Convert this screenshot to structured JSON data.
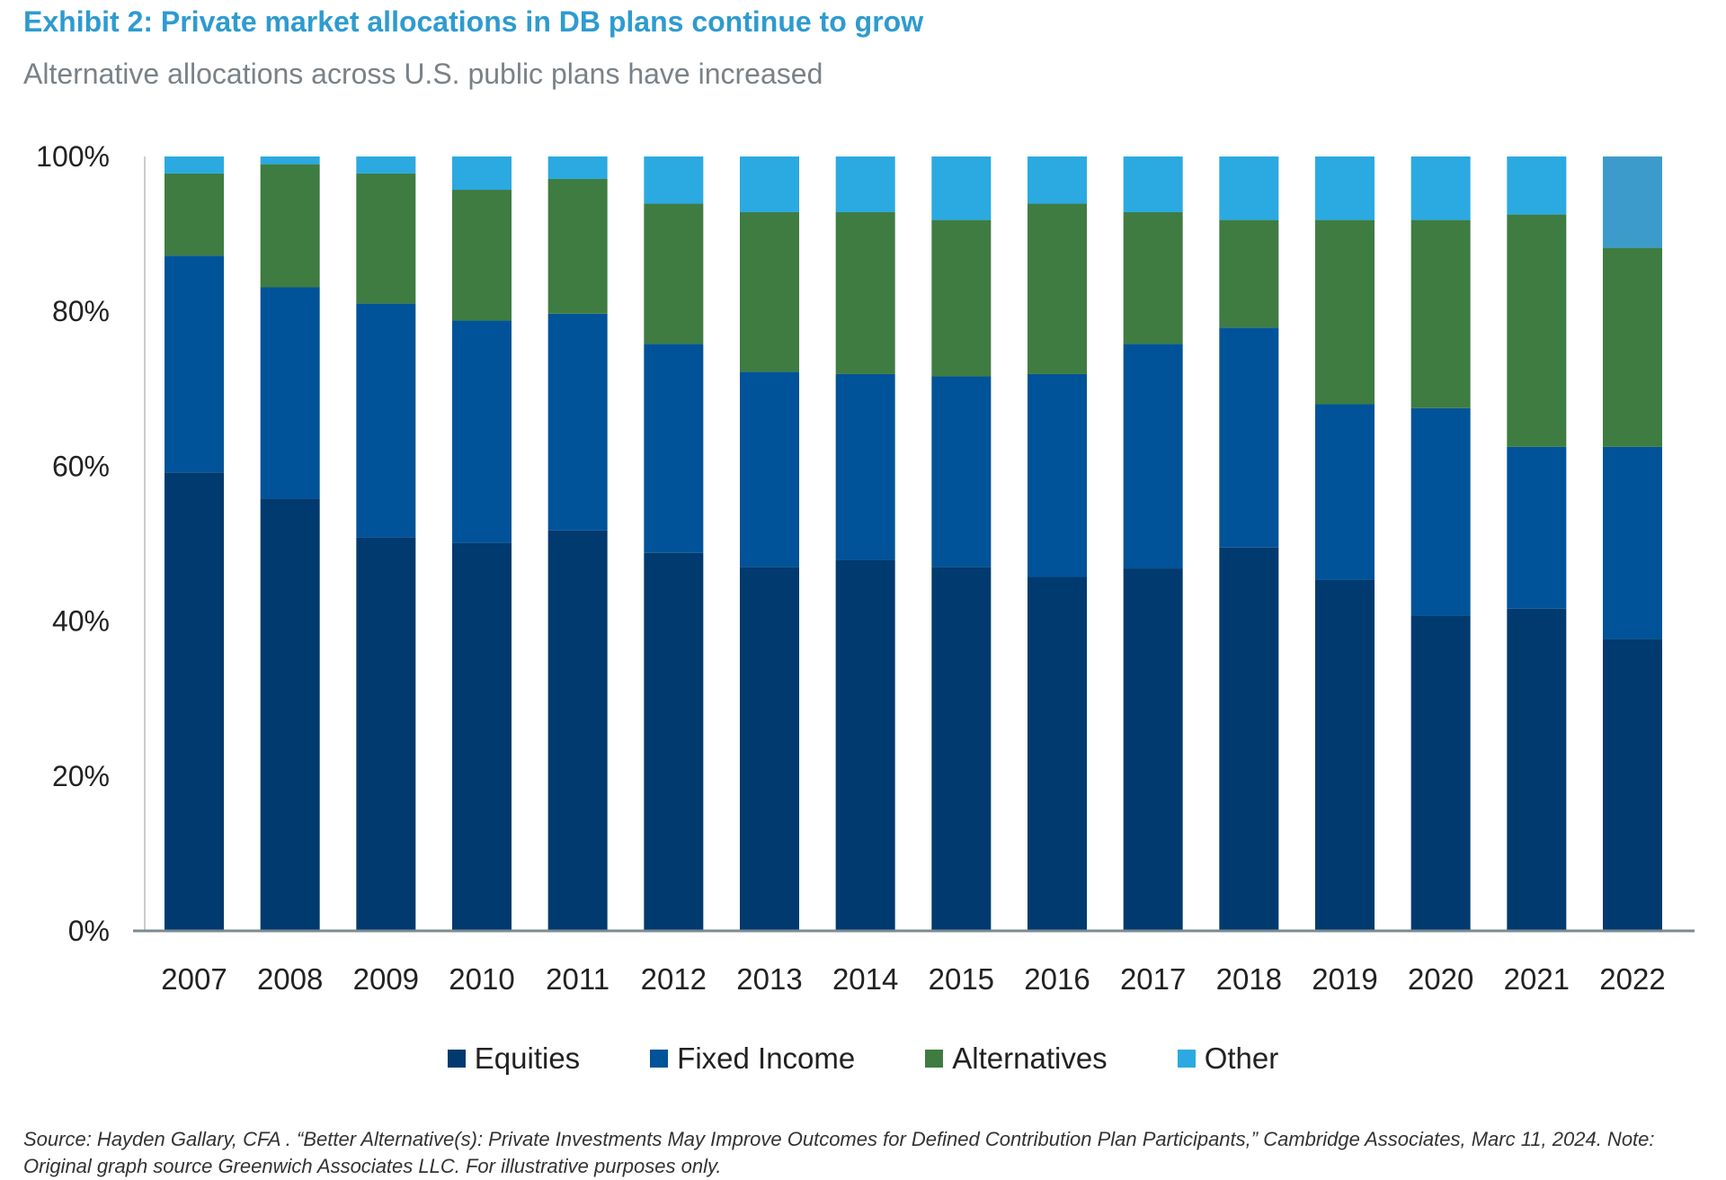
{
  "header": {
    "title": "Exhibit 2: Private market allocations in DB plans continue to grow",
    "subtitle": "Alternative allocations across U.S. public plans have increased"
  },
  "footer": {
    "source": "Source: Hayden Gallary, CFA . “Better Alternative(s): Private Investments May Improve Outcomes for Defined Contribution Plan Participants,” Cambridge Associates, Marc 11, 2024. Note: Original graph source Greenwich Associates LLC. For illustrative purposes only."
  },
  "chart_data": {
    "type": "bar",
    "stacked": true,
    "title": "Exhibit 2: Private market allocations in DB plans continue to grow",
    "subtitle": "Alternative allocations across U.S. public plans have increased",
    "xlabel": "",
    "ylabel": "",
    "ylim": [
      0,
      100
    ],
    "yticks": [
      "0%",
      "20%",
      "40%",
      "60%",
      "80%",
      "100%"
    ],
    "grid": false,
    "legend_position": "bottom",
    "categories": [
      "2007",
      "2008",
      "2009",
      "2010",
      "2011",
      "2012",
      "2013",
      "2014",
      "2015",
      "2016",
      "2017",
      "2018",
      "2019",
      "2020",
      "2021",
      "2022"
    ],
    "series": [
      {
        "name": "Equities",
        "color": "#003a6e",
        "values": [
          59.2,
          55.8,
          50.8,
          50.1,
          51.7,
          48.8,
          47.0,
          47.9,
          47.0,
          45.7,
          46.8,
          49.5,
          45.3,
          40.7,
          41.6,
          37.7
        ]
      },
      {
        "name": "Fixed Income",
        "color": "#005398",
        "values": [
          28.0,
          27.3,
          30.2,
          28.7,
          28.0,
          27.0,
          25.2,
          24.0,
          24.6,
          26.2,
          29.0,
          28.4,
          22.7,
          26.8,
          20.9,
          24.8
        ]
      },
      {
        "name": "Alternatives",
        "color": "#3e7c41",
        "values": [
          10.6,
          15.9,
          16.8,
          16.9,
          17.4,
          18.1,
          20.6,
          20.9,
          20.2,
          22.0,
          17.0,
          13.9,
          23.8,
          24.3,
          30.0,
          25.7
        ]
      },
      {
        "name": "Other",
        "color": "#2ba9e1",
        "values": [
          2.2,
          1.0,
          2.2,
          4.3,
          2.9,
          6.1,
          7.2,
          7.2,
          8.2,
          6.1,
          7.2,
          8.2,
          8.2,
          8.2,
          7.5,
          11.8
        ]
      }
    ],
    "highlight_color": "#3d9bcb"
  }
}
